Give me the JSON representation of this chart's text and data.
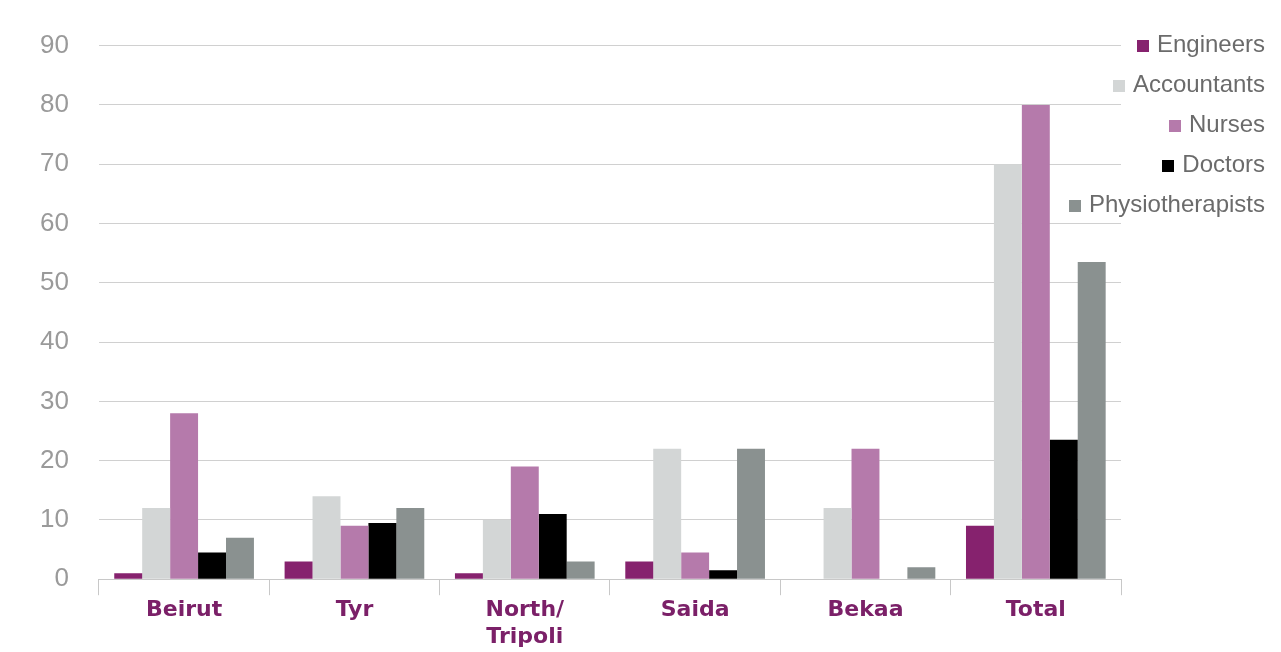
{
  "chart_data": {
    "type": "bar",
    "categories": [
      "Beirut",
      "Tyr",
      "North/\nTripoli",
      "Saida",
      "Bekaa",
      "Total"
    ],
    "series": [
      {
        "name": "Engineers",
        "color": "#86226e",
        "values": [
          1,
          3,
          1,
          3,
          null,
          9
        ]
      },
      {
        "name": "Accountants",
        "color": "#d3d6d6",
        "values": [
          12,
          14,
          10,
          22,
          12,
          70
        ]
      },
      {
        "name": "Nurses",
        "color": "#b57aab",
        "values": [
          28,
          9,
          19,
          4.5,
          22,
          80
        ]
      },
      {
        "name": "Doctors",
        "color": "#000000",
        "values": [
          4.5,
          9.5,
          11,
          1.5,
          null,
          23.5
        ]
      },
      {
        "name": "Physiotherapists",
        "color": "#8a9190",
        "values": [
          7,
          12,
          3,
          22,
          2,
          53.5
        ]
      }
    ],
    "ylim": [
      0,
      90
    ],
    "yticks": [
      0,
      10,
      20,
      30,
      40,
      50,
      60,
      70,
      80,
      90
    ],
    "grid": "y",
    "legend": "top right"
  }
}
